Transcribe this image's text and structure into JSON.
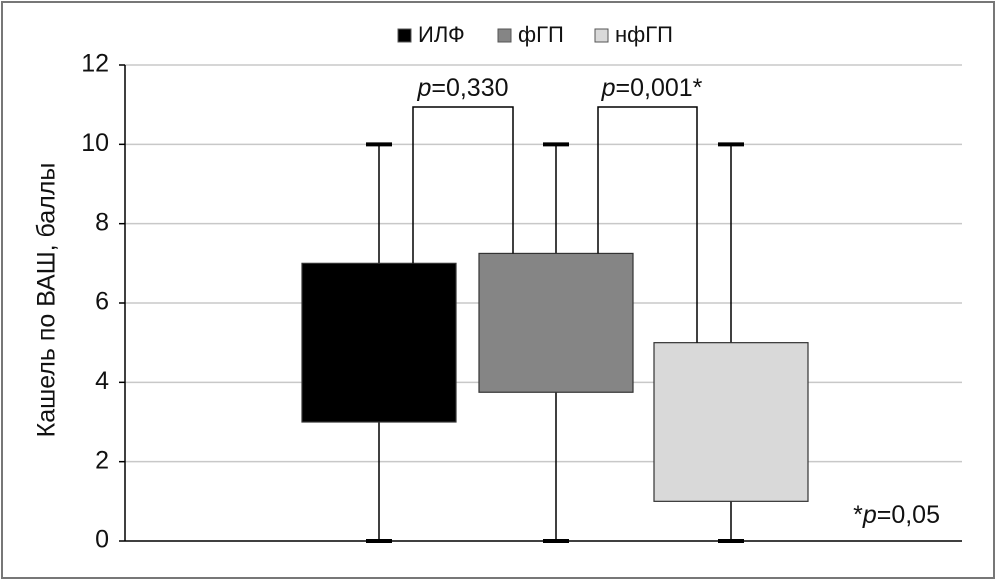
{
  "chart_data": {
    "type": "box",
    "ylabel": "Кашель по ВАШ, баллы",
    "ylim": [
      0,
      12
    ],
    "yticks": [
      0,
      2,
      4,
      6,
      8,
      10,
      12
    ],
    "grid": true,
    "legend": "top",
    "series": [
      {
        "name": "ИЛФ",
        "color": "#000000",
        "min": 0,
        "q1": 3,
        "q3": 7,
        "max": 10
      },
      {
        "name": "фГП",
        "color": "#858585",
        "min": 0,
        "q1": 3.75,
        "q3": 7.25,
        "max": 10
      },
      {
        "name": "нфГП",
        "color": "#d9d9d9",
        "min": 0,
        "q1": 1,
        "q3": 5,
        "max": 10
      }
    ],
    "annotations": [
      "p=0,330",
      "p=0,001*",
      "*p=0,05"
    ]
  }
}
